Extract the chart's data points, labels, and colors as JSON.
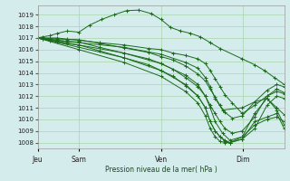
{
  "bg_color": "#d4ecec",
  "grid_color": "#aad4aa",
  "line_color": "#1a6b1a",
  "xlabel_text": "Pression niveau de la mer( hPa )",
  "xtick_labels": [
    "Jeu",
    "Sam",
    "Ven",
    "Dim"
  ],
  "xtick_positions": [
    0.0,
    0.167,
    0.5,
    0.833
  ],
  "ylim": [
    1007.5,
    1019.8
  ],
  "yticks": [
    1008,
    1009,
    1010,
    1011,
    1012,
    1013,
    1014,
    1015,
    1016,
    1017,
    1018,
    1019
  ],
  "lines": [
    {
      "x": [
        0.0,
        0.02,
        0.05,
        0.08,
        0.12,
        0.167,
        0.21,
        0.26,
        0.31,
        0.36,
        0.41,
        0.46,
        0.5,
        0.54,
        0.58,
        0.62,
        0.66,
        0.7,
        0.74,
        0.83,
        0.88,
        0.92,
        0.96,
        1.0
      ],
      "y": [
        1017.0,
        1017.1,
        1017.2,
        1017.4,
        1017.6,
        1017.5,
        1018.1,
        1018.6,
        1019.0,
        1019.35,
        1019.4,
        1019.1,
        1018.6,
        1017.9,
        1017.6,
        1017.4,
        1017.1,
        1016.6,
        1016.1,
        1015.2,
        1014.7,
        1014.2,
        1013.6,
        1013.0
      ],
      "marker": true
    },
    {
      "x": [
        0.0,
        0.02,
        0.05,
        0.08,
        0.12,
        0.167,
        0.25,
        0.35,
        0.45,
        0.5,
        0.55,
        0.6,
        0.65,
        0.68,
        0.7,
        0.72,
        0.74,
        0.76,
        0.79,
        0.83,
        0.88,
        0.93,
        0.97,
        1.0
      ],
      "y": [
        1017.0,
        1017.0,
        1017.0,
        1017.0,
        1016.9,
        1016.8,
        1016.6,
        1016.4,
        1016.1,
        1016.0,
        1015.7,
        1015.5,
        1015.2,
        1014.8,
        1014.2,
        1013.5,
        1012.8,
        1012.1,
        1011.4,
        1010.5,
        1011.2,
        1012.0,
        1012.4,
        1012.2
      ],
      "marker": true
    },
    {
      "x": [
        0.0,
        0.167,
        0.35,
        0.5,
        0.6,
        0.65,
        0.68,
        0.7,
        0.72,
        0.75,
        0.83,
        0.88,
        0.93,
        0.97,
        1.0
      ],
      "y": [
        1017.0,
        1016.6,
        1016.2,
        1015.6,
        1014.9,
        1014.4,
        1013.6,
        1012.8,
        1011.8,
        1010.8,
        1011.0,
        1011.5,
        1011.8,
        1011.0,
        1010.4
      ],
      "marker": false
    },
    {
      "x": [
        0.0,
        0.167,
        0.35,
        0.5,
        0.6,
        0.65,
        0.68,
        0.7,
        0.72,
        0.75,
        0.78,
        0.83,
        0.88,
        0.93,
        0.97,
        1.0
      ],
      "y": [
        1017.0,
        1016.4,
        1015.7,
        1014.8,
        1013.8,
        1013.0,
        1012.0,
        1011.0,
        1009.8,
        1008.8,
        1008.2,
        1008.5,
        1010.5,
        1011.8,
        1010.8,
        1009.5
      ],
      "marker": false
    },
    {
      "x": [
        0.0,
        0.167,
        0.35,
        0.5,
        0.6,
        0.65,
        0.68,
        0.7,
        0.72,
        0.74,
        0.76,
        0.78,
        0.83,
        0.88,
        0.93,
        0.97,
        1.0
      ],
      "y": [
        1017.0,
        1016.2,
        1015.3,
        1014.2,
        1013.0,
        1012.0,
        1011.0,
        1009.8,
        1009.0,
        1008.5,
        1008.2,
        1008.0,
        1008.3,
        1009.8,
        1010.2,
        1010.5,
        1009.2
      ],
      "marker": false
    },
    {
      "x": [
        0.0,
        0.167,
        0.35,
        0.5,
        0.6,
        0.65,
        0.68,
        0.7,
        0.72,
        0.74,
        0.76,
        0.78,
        0.83,
        0.88,
        0.93,
        0.97,
        1.0
      ],
      "y": [
        1017.0,
        1016.0,
        1014.9,
        1013.7,
        1012.4,
        1011.4,
        1010.3,
        1009.2,
        1008.5,
        1008.1,
        1008.0,
        1008.0,
        1008.5,
        1009.5,
        1010.0,
        1010.2,
        1009.8
      ],
      "marker": false
    },
    {
      "x": [
        0.0,
        0.02,
        0.05,
        0.08,
        0.12,
        0.167,
        0.25,
        0.35,
        0.45,
        0.5,
        0.55,
        0.6,
        0.65,
        0.68,
        0.7,
        0.72,
        0.74,
        0.76,
        0.78,
        0.83,
        0.88,
        0.93,
        0.97,
        1.0
      ],
      "y": [
        1017.0,
        1016.9,
        1016.8,
        1016.7,
        1016.5,
        1016.4,
        1015.9,
        1015.3,
        1014.7,
        1014.2,
        1013.7,
        1012.9,
        1012.0,
        1011.0,
        1009.8,
        1009.0,
        1008.5,
        1008.1,
        1008.0,
        1008.3,
        1009.2,
        1011.2,
        1012.0,
        1011.8
      ],
      "marker": true
    },
    {
      "x": [
        0.0,
        0.02,
        0.05,
        0.08,
        0.12,
        0.167,
        0.25,
        0.35,
        0.45,
        0.5,
        0.55,
        0.6,
        0.65,
        0.68,
        0.7,
        0.72,
        0.74,
        0.76,
        0.79,
        0.83,
        0.88,
        0.93,
        0.97,
        1.0
      ],
      "y": [
        1017.0,
        1016.95,
        1016.9,
        1016.8,
        1016.7,
        1016.65,
        1016.2,
        1015.7,
        1015.2,
        1014.8,
        1014.3,
        1013.6,
        1012.8,
        1012.0,
        1011.2,
        1010.5,
        1009.8,
        1009.2,
        1008.8,
        1009.0,
        1010.2,
        1012.0,
        1012.6,
        1012.3
      ],
      "marker": true
    },
    {
      "x": [
        0.0,
        0.02,
        0.05,
        0.08,
        0.12,
        0.167,
        0.25,
        0.35,
        0.45,
        0.5,
        0.55,
        0.6,
        0.65,
        0.68,
        0.7,
        0.72,
        0.74,
        0.76,
        0.79,
        0.83,
        0.88,
        0.93,
        0.97,
        1.0
      ],
      "y": [
        1017.0,
        1016.98,
        1016.95,
        1016.92,
        1016.88,
        1016.85,
        1016.55,
        1016.15,
        1015.75,
        1015.4,
        1015.1,
        1014.6,
        1013.9,
        1013.3,
        1012.6,
        1011.9,
        1011.2,
        1010.6,
        1010.1,
        1010.3,
        1011.5,
        1012.5,
        1013.0,
        1012.8
      ],
      "marker": true
    }
  ]
}
